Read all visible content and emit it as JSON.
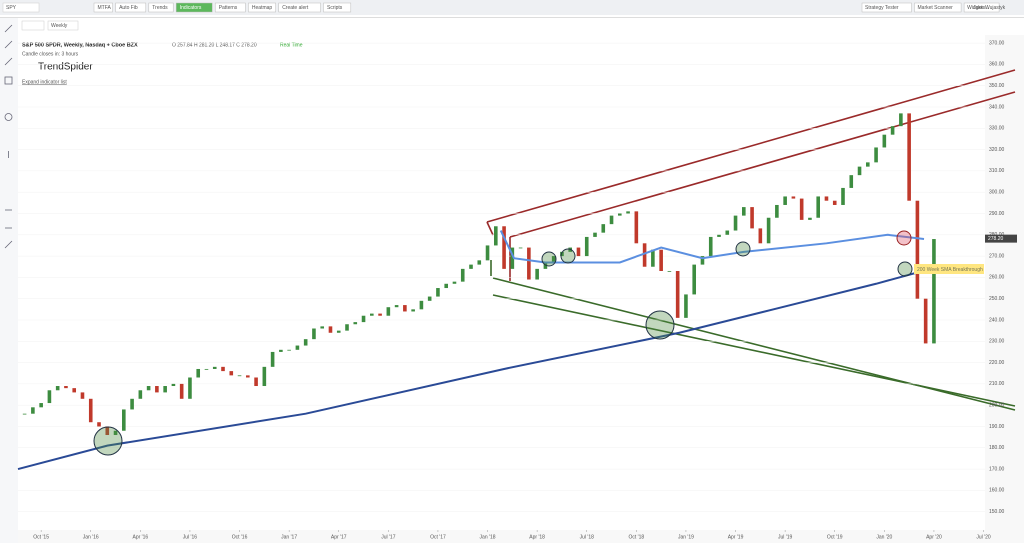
{
  "toolbar": {
    "symbol": "SPY",
    "buttons": [
      "MTFA",
      "Auto Fib",
      "Trends",
      "Indicators",
      "Patterns",
      "Heatmap",
      "Create alert",
      "Scripts"
    ],
    "right_buttons": [
      "Strategy Tester",
      "Market Scanner",
      "Widgets..."
    ],
    "user": "Jake Wujastyk",
    "interval": "Weekly"
  },
  "chart_data": {
    "type": "candlestick",
    "title": "S&P 500 SPDR, Weekly, Nasdaq + Cboe BZX",
    "ohlc": "O 257.84  H 281.20  L 248.17  C 278.20",
    "status": "Real Time",
    "subtitle": "Candle closes in: 3 hours",
    "logo": "TrendSpider",
    "expand": "Expand indicator list",
    "annotation": "200 Week SMA Breakthrough",
    "last_price": 278.2,
    "last_price_label": "278.20",
    "x": [
      -1,
      -0.5,
      0,
      0.5,
      1,
      1.5,
      2,
      2.5,
      3,
      3.5,
      4,
      4.5,
      5,
      5.5,
      6,
      6.5,
      7,
      7.5,
      8,
      8.5,
      9,
      9.5,
      10,
      10.5,
      11,
      11.5,
      12,
      12.5,
      13,
      13.5,
      14,
      14.5,
      15,
      15.5,
      16,
      16.5,
      17,
      17.5,
      18,
      18.5,
      19,
      19.5,
      20,
      20.5,
      21,
      21.5,
      22,
      22.5,
      23,
      23.5,
      24,
      24.5,
      25,
      25.5,
      26,
      26.5,
      27,
      27.5,
      28,
      28.5,
      29,
      29.5,
      30,
      30.5,
      31,
      31.5,
      32,
      32.5,
      33,
      33.5,
      34,
      34.5,
      35,
      35.5,
      36,
      36.5,
      37,
      37.5,
      38,
      38.5,
      39,
      39.5,
      40,
      40.5,
      41,
      41.5,
      42,
      42.5,
      43,
      43.5,
      44,
      44.5,
      45,
      45.5,
      46,
      46.5,
      47,
      47.5,
      48,
      48.5,
      49,
      49.5,
      50,
      50.5,
      51,
      51.5,
      52,
      52.5,
      53,
      53.5,
      54
    ],
    "values": [
      196,
      199,
      201,
      207,
      209,
      208,
      206,
      203,
      192,
      190,
      186,
      188,
      198,
      203,
      207,
      209,
      206,
      209,
      210,
      203,
      213,
      217,
      217,
      218,
      216,
      214,
      214,
      213,
      209,
      218,
      225,
      226,
      226,
      228,
      231,
      236,
      237,
      234,
      235,
      238,
      239,
      242,
      243,
      242,
      246,
      247,
      244,
      245,
      249,
      251,
      255,
      257,
      258,
      264,
      266,
      268,
      275,
      284,
      264,
      274,
      274,
      259,
      264,
      267,
      270,
      272,
      274,
      270,
      279,
      281,
      285,
      289,
      290,
      291,
      276,
      265,
      273,
      263,
      263,
      241,
      252,
      266,
      270,
      279,
      280,
      282,
      289,
      293,
      283,
      276,
      288,
      294,
      298,
      297,
      287,
      288,
      298,
      296,
      294,
      302,
      308,
      312,
      314,
      321,
      327,
      331,
      337,
      296,
      250,
      229,
      278
    ],
    "up_color": "#3d8c40",
    "down_color": "#c0392b",
    "series": [
      {
        "color": "#2a4a96",
        "x": [
          -1.4,
          4,
          16,
          28,
          38.6,
          44.3,
          50.5,
          53.8
        ],
        "values": [
          170,
          181,
          196,
          217,
          234,
          245,
          257,
          264
        ]
      },
      {
        "color": "#5b8fe0",
        "x": [
          27.8,
          28.6,
          30.5,
          35,
          37.5,
          40,
          42.5,
          47.5,
          51.2,
          53.4
        ],
        "values": [
          282,
          269,
          267,
          267,
          274,
          269,
          272,
          276,
          280,
          278
        ]
      }
    ],
    "xlim": [
      -1.4,
      59
    ],
    "ylim": [
      141.4,
      373.8
    ],
    "xticks": [
      {
        "value": 0,
        "label": "Oct '15"
      },
      {
        "value": 3,
        "label": "Jan '16"
      },
      {
        "value": 6,
        "label": "Apr '16"
      },
      {
        "value": 9,
        "label": "Jul '16"
      },
      {
        "value": 12,
        "label": "Oct '16"
      },
      {
        "value": 15,
        "label": "Jan '17"
      },
      {
        "value": 18,
        "label": "Apr '17"
      },
      {
        "value": 21,
        "label": "Jul '17"
      },
      {
        "value": 24,
        "label": "Oct '17"
      },
      {
        "value": 27,
        "label": "Jan '18"
      },
      {
        "value": 30,
        "label": "Apr '18"
      },
      {
        "value": 33,
        "label": "Jul '18"
      },
      {
        "value": 36,
        "label": "Oct '18"
      },
      {
        "value": 39,
        "label": "Jan '19"
      },
      {
        "value": 42,
        "label": "Apr '19"
      },
      {
        "value": 45,
        "label": "Jul '19"
      },
      {
        "value": 48,
        "label": "Oct '19"
      },
      {
        "value": 51,
        "label": "Jan '20"
      },
      {
        "value": 54,
        "label": "Apr '20"
      },
      {
        "value": 57,
        "label": "Jul '20"
      }
    ],
    "yticks": [
      {
        "value": 370,
        "label": "370.00"
      },
      {
        "value": 360,
        "label": "360.00"
      },
      {
        "value": 350,
        "label": "350.00"
      },
      {
        "value": 340,
        "label": "340.00"
      },
      {
        "value": 330,
        "label": "330.00"
      },
      {
        "value": 320,
        "label": "320.00"
      },
      {
        "value": 310,
        "label": "310.00"
      },
      {
        "value": 300,
        "label": "300.00"
      },
      {
        "value": 290,
        "label": "290.00"
      },
      {
        "value": 280,
        "label": "280.00"
      },
      {
        "value": 270,
        "label": "270.00"
      },
      {
        "value": 260,
        "label": "260.00"
      },
      {
        "value": 250,
        "label": "250.00"
      },
      {
        "value": 240,
        "label": "240.00"
      },
      {
        "value": 230,
        "label": "230.00"
      },
      {
        "value": 220,
        "label": "220.00"
      },
      {
        "value": 210,
        "label": "210.00"
      },
      {
        "value": 200,
        "label": "200.00"
      },
      {
        "value": 190,
        "label": "190.00"
      },
      {
        "value": 180,
        "label": "180.00"
      },
      {
        "value": 170,
        "label": "170.00"
      },
      {
        "value": 160,
        "label": "160.00"
      },
      {
        "value": 150,
        "label": "150.00"
      }
    ]
  }
}
